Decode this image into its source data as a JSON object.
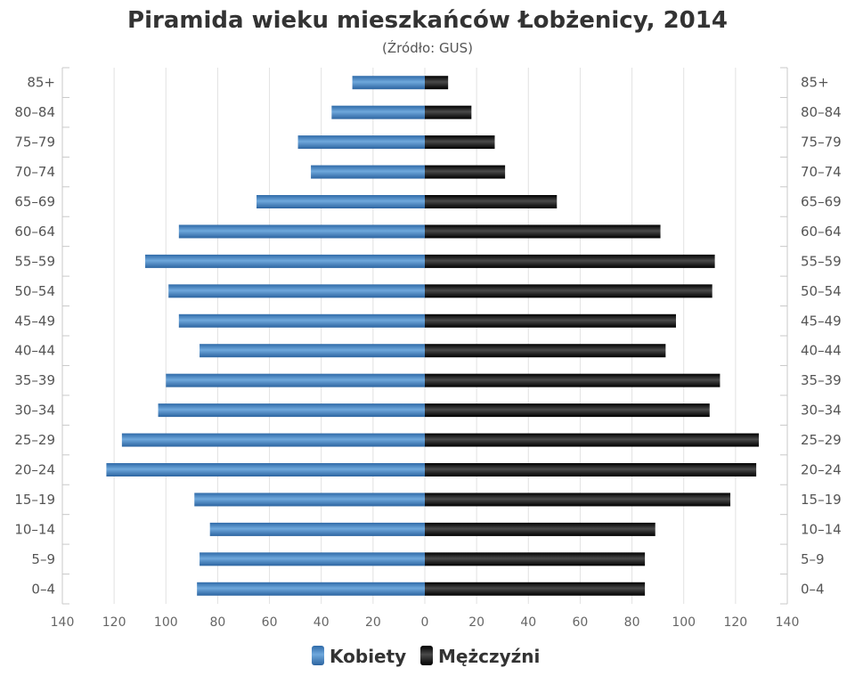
{
  "chart_data": {
    "type": "bar",
    "title": "Piramida wieku mieszkańców Łobżenicy, 2014",
    "subtitle": "(Źródło: GUS)",
    "categories": [
      "85+",
      "80–84",
      "75–79",
      "70–74",
      "65–69",
      "60–64",
      "55–59",
      "50–54",
      "45–49",
      "40–44",
      "35–39",
      "30–34",
      "25–29",
      "20–24",
      "15–19",
      "10–14",
      "5–9",
      "0–4"
    ],
    "xlim": [
      -140,
      140
    ],
    "x_ticks": [
      -140,
      -120,
      -100,
      -80,
      -60,
      -40,
      -20,
      0,
      20,
      40,
      60,
      80,
      100,
      120,
      140
    ],
    "x_tick_labels": [
      "140",
      "120",
      "100",
      "80",
      "60",
      "40",
      "20",
      "0",
      "20",
      "40",
      "60",
      "80",
      "100",
      "120",
      "140"
    ],
    "grid": true,
    "legend_position": "bottom",
    "series": [
      {
        "name": "Kobiety",
        "side": "left",
        "color": "#4a86c5",
        "values": [
          28,
          36,
          49,
          44,
          65,
          95,
          108,
          99,
          95,
          87,
          100,
          103,
          117,
          123,
          89,
          83,
          87,
          88
        ]
      },
      {
        "name": "Mężczyźni",
        "side": "right",
        "color": "#1a1a1a",
        "values": [
          9,
          18,
          27,
          31,
          51,
          91,
          112,
          111,
          97,
          93,
          114,
          110,
          129,
          128,
          118,
          89,
          85,
          85
        ]
      }
    ]
  }
}
